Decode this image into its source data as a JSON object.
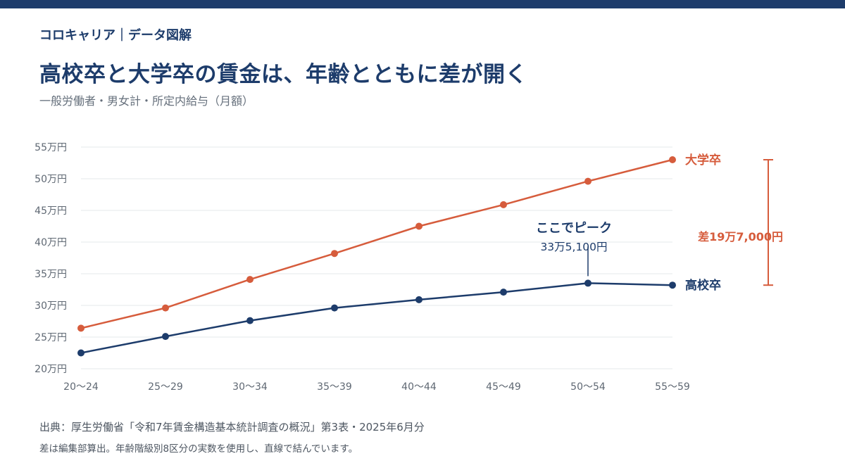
{
  "header": {
    "brand": "コロキャリア｜データ図解",
    "title": "高校卒と大学卒の賃金は、年齢とともに差が開く",
    "subtitle": "一般労働者・男女計・所定内給与（月額）"
  },
  "colors": {
    "navy": "#1d3c6b",
    "orange": "#d65c3c",
    "grid": "#e6e8eb",
    "axis_text": "#5f6873"
  },
  "chart_data": {
    "type": "line",
    "categories": [
      "20〜24",
      "25〜29",
      "30〜34",
      "35〜39",
      "40〜44",
      "45〜49",
      "50〜54",
      "55〜59"
    ],
    "ylim": [
      20,
      55
    ],
    "yticks": [
      20,
      25,
      30,
      35,
      40,
      45,
      50,
      55
    ],
    "ytick_suffix": "万円",
    "grid": true,
    "series": [
      {
        "name": "大学卒",
        "color": "#d65c3c",
        "values": [
          26.4,
          29.6,
          34.1,
          38.2,
          42.5,
          45.9,
          49.6,
          53.0
        ]
      },
      {
        "name": "高校卒",
        "color": "#1d3c6b",
        "values": [
          22.5,
          25.1,
          27.6,
          29.6,
          30.9,
          32.1,
          33.51,
          33.2
        ]
      }
    ],
    "annotations": {
      "peak": {
        "title": "ここでピーク",
        "value": "33万5,100円",
        "category_index": 6,
        "y": 33.51
      },
      "gap": {
        "label": "差19万7,000円",
        "from": 33.2,
        "to": 53.0
      }
    }
  },
  "footer": {
    "source": "出典：厚生労働省「令和7年賃金構造基本統計調査の概況」第3表・2025年6月分",
    "note": "差は編集部算出。年齢階級別8区分の実数を使用し、直線で結んでいます。"
  }
}
